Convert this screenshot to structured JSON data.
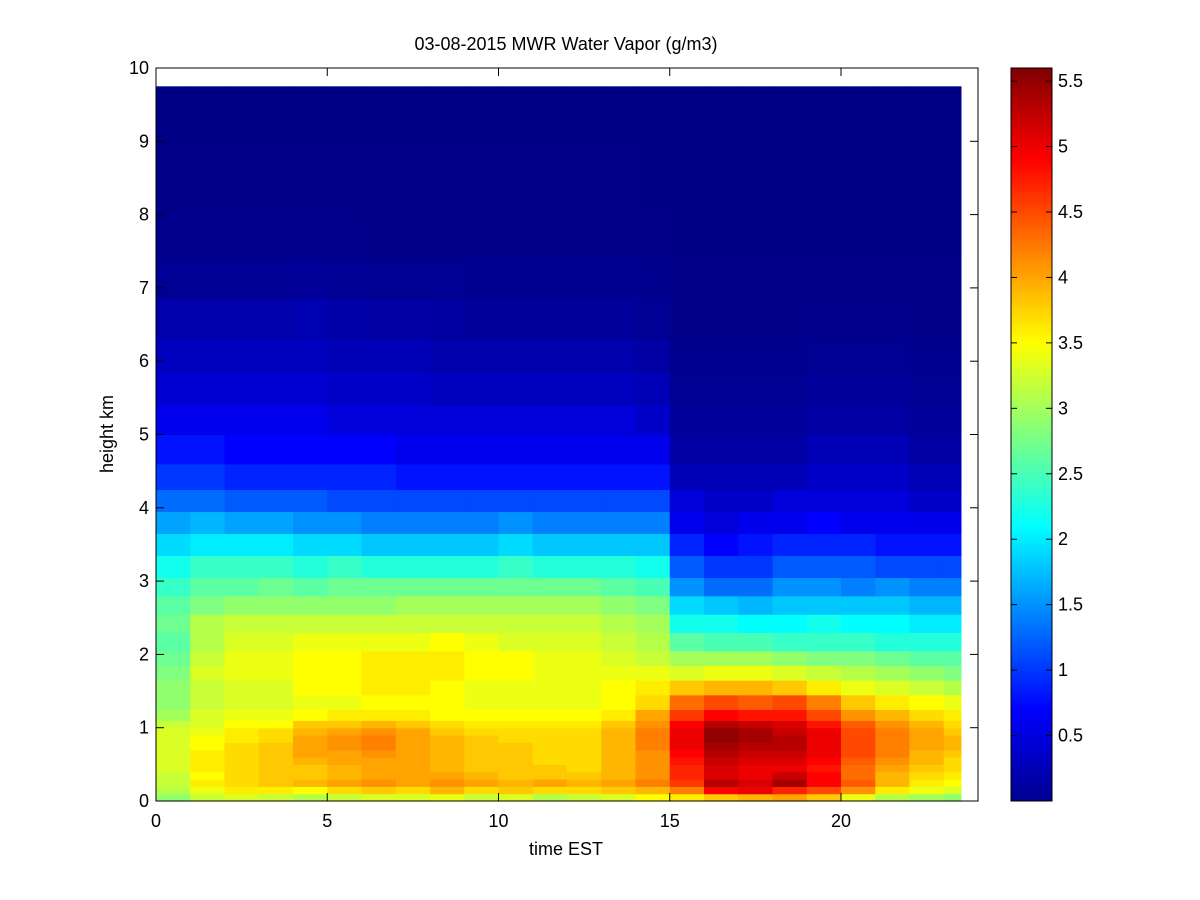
{
  "chart_data": {
    "type": "heatmap",
    "title": "03-08-2015 MWR Water Vapor (g/m3)",
    "xlabel": "time EST",
    "ylabel": "height km",
    "xlim": [
      0,
      24
    ],
    "ylim": [
      0,
      10
    ],
    "xticks": [
      0,
      5,
      10,
      15,
      20
    ],
    "yticks": [
      0,
      1,
      2,
      3,
      4,
      5,
      6,
      7,
      8,
      9,
      10
    ],
    "colormap": "jet",
    "clim": [
      0,
      5.6
    ],
    "colorbar_ticks": [
      0.5,
      1,
      1.5,
      2,
      2.5,
      3,
      3.5,
      4,
      4.5,
      5,
      5.5
    ],
    "x": [
      0,
      1,
      2,
      3,
      4,
      5,
      6,
      7,
      8,
      9,
      10,
      11,
      12,
      13,
      14,
      15,
      16,
      17,
      18,
      19,
      20,
      21,
      22,
      23,
      23.5
    ],
    "y": [
      0,
      0.1,
      0.2,
      0.3,
      0.4,
      0.5,
      0.6,
      0.7,
      0.8,
      0.9,
      1.0,
      1.1,
      1.25,
      1.45,
      1.65,
      1.85,
      2.05,
      2.3,
      2.55,
      2.8,
      3.05,
      3.35,
      3.65,
      3.95,
      4.25,
      4.6,
      5.0,
      5.4,
      5.85,
      6.3,
      6.85,
      7.4,
      8.0,
      8.9,
      9.75
    ],
    "z": [
      [
        2.9,
        3.2,
        3.3,
        3.2,
        3.1,
        3.2,
        3.3,
        3.3,
        3.4,
        3.2,
        3.3,
        3.1,
        3.2,
        3.3,
        3.5,
        3.6,
        3.8,
        3.9,
        4.0,
        3.8,
        3.4,
        3.1,
        3.0,
        2.9,
        2.8
      ],
      [
        3.1,
        3.4,
        3.6,
        3.6,
        3.5,
        3.7,
        3.8,
        3.7,
        3.9,
        3.7,
        3.8,
        3.7,
        3.7,
        3.8,
        3.9,
        4.2,
        4.9,
        5.0,
        4.7,
        4.5,
        4.1,
        3.6,
        3.4,
        3.3,
        3.2
      ],
      [
        3.2,
        3.6,
        3.7,
        3.8,
        3.9,
        4.0,
        4.1,
        4.0,
        4.1,
        4.0,
        3.9,
        4.0,
        3.9,
        4.0,
        4.2,
        4.6,
        5.3,
        5.1,
        5.4,
        4.9,
        4.4,
        3.9,
        3.6,
        3.5,
        3.5
      ],
      [
        3.2,
        3.5,
        3.7,
        3.8,
        3.8,
        3.9,
        4.0,
        4.0,
        4.0,
        3.9,
        3.8,
        3.8,
        3.8,
        3.9,
        4.1,
        4.7,
        5.1,
        5.0,
        5.2,
        4.9,
        4.3,
        3.9,
        3.7,
        3.6,
        3.6
      ],
      [
        3.3,
        3.6,
        3.7,
        3.8,
        3.8,
        3.9,
        4.0,
        4.0,
        3.9,
        3.8,
        3.8,
        3.8,
        3.7,
        3.9,
        4.1,
        4.7,
        5.1,
        5.0,
        5.0,
        4.8,
        4.3,
        4.0,
        3.8,
        3.7,
        3.7
      ],
      [
        3.3,
        3.6,
        3.7,
        3.8,
        3.9,
        4.0,
        4.0,
        4.0,
        3.9,
        3.8,
        3.8,
        3.7,
        3.7,
        3.9,
        4.1,
        4.8,
        5.2,
        5.1,
        5.1,
        4.9,
        4.4,
        4.1,
        3.9,
        3.7,
        3.8
      ],
      [
        3.3,
        3.6,
        3.7,
        3.8,
        4.0,
        4.0,
        4.1,
        4.0,
        3.9,
        3.8,
        3.8,
        3.7,
        3.7,
        3.9,
        4.1,
        4.9,
        5.3,
        5.2,
        5.2,
        5.0,
        4.5,
        4.2,
        3.9,
        3.8,
        3.9
      ],
      [
        3.3,
        3.5,
        3.7,
        3.8,
        4.0,
        4.1,
        4.2,
        4.0,
        3.9,
        3.8,
        3.8,
        3.7,
        3.7,
        3.9,
        4.2,
        5.0,
        5.4,
        5.3,
        5.3,
        5.0,
        4.5,
        4.2,
        4.0,
        3.9,
        3.9
      ],
      [
        3.3,
        3.5,
        3.6,
        3.7,
        4.0,
        4.1,
        4.2,
        4.0,
        3.9,
        3.8,
        3.7,
        3.7,
        3.7,
        3.9,
        4.2,
        5.0,
        5.5,
        5.4,
        5.3,
        5.0,
        4.5,
        4.2,
        4.0,
        3.9,
        3.9
      ],
      [
        3.3,
        3.4,
        3.6,
        3.7,
        3.9,
        4.0,
        4.1,
        4.0,
        3.8,
        3.7,
        3.7,
        3.7,
        3.7,
        3.9,
        4.2,
        5.0,
        5.5,
        5.4,
        5.2,
        5.0,
        4.5,
        4.2,
        4.0,
        3.8,
        3.9
      ],
      [
        3.2,
        3.3,
        3.5,
        3.5,
        3.8,
        3.8,
        3.9,
        3.8,
        3.7,
        3.6,
        3.6,
        3.6,
        3.6,
        3.8,
        4.1,
        4.9,
        5.3,
        5.2,
        5.1,
        4.8,
        4.4,
        4.1,
        3.9,
        3.7,
        3.8
      ],
      [
        3.0,
        3.3,
        3.4,
        3.4,
        3.5,
        3.6,
        3.6,
        3.6,
        3.5,
        3.5,
        3.5,
        3.5,
        3.5,
        3.6,
        4.0,
        4.6,
        4.9,
        4.8,
        4.8,
        4.5,
        4.1,
        3.9,
        3.7,
        3.6,
        3.6
      ],
      [
        2.9,
        3.2,
        3.3,
        3.3,
        3.4,
        3.4,
        3.5,
        3.5,
        3.5,
        3.4,
        3.4,
        3.4,
        3.4,
        3.5,
        3.7,
        4.3,
        4.5,
        4.4,
        4.5,
        4.2,
        3.8,
        3.6,
        3.5,
        3.4,
        3.3
      ],
      [
        2.9,
        3.2,
        3.3,
        3.3,
        3.5,
        3.5,
        3.6,
        3.6,
        3.5,
        3.4,
        3.4,
        3.4,
        3.4,
        3.5,
        3.6,
        3.8,
        3.9,
        3.9,
        3.8,
        3.6,
        3.4,
        3.3,
        3.2,
        3.1,
        3.1
      ],
      [
        2.8,
        3.3,
        3.4,
        3.4,
        3.5,
        3.5,
        3.6,
        3.6,
        3.6,
        3.5,
        3.5,
        3.4,
        3.4,
        3.4,
        3.4,
        3.3,
        3.4,
        3.4,
        3.3,
        3.2,
        3.1,
        3.0,
        2.9,
        2.8,
        2.8
      ],
      [
        2.7,
        3.2,
        3.4,
        3.4,
        3.5,
        3.5,
        3.6,
        3.6,
        3.6,
        3.5,
        3.5,
        3.4,
        3.4,
        3.3,
        3.2,
        3.0,
        3.0,
        3.0,
        2.9,
        2.8,
        2.8,
        2.7,
        2.6,
        2.6,
        2.6
      ],
      [
        2.6,
        3.1,
        3.3,
        3.3,
        3.4,
        3.4,
        3.4,
        3.4,
        3.5,
        3.4,
        3.3,
        3.3,
        3.3,
        3.2,
        3.1,
        2.6,
        2.5,
        2.5,
        2.4,
        2.4,
        2.4,
        2.3,
        2.3,
        2.3,
        2.3
      ],
      [
        2.7,
        3.1,
        3.2,
        3.2,
        3.2,
        3.2,
        3.2,
        3.2,
        3.2,
        3.2,
        3.2,
        3.2,
        3.2,
        3.1,
        3.0,
        2.2,
        2.2,
        2.1,
        2.1,
        2.2,
        2.1,
        2.1,
        2.0,
        2.0,
        2.1
      ],
      [
        2.6,
        2.8,
        2.9,
        2.9,
        2.9,
        2.9,
        2.9,
        3.0,
        3.0,
        3.0,
        3.0,
        3.0,
        3.0,
        2.9,
        2.8,
        1.9,
        1.8,
        1.7,
        1.8,
        1.8,
        1.8,
        1.8,
        1.7,
        1.7,
        1.8
      ],
      [
        2.4,
        2.6,
        2.6,
        2.7,
        2.6,
        2.7,
        2.7,
        2.7,
        2.7,
        2.7,
        2.7,
        2.7,
        2.7,
        2.6,
        2.5,
        1.5,
        1.3,
        1.3,
        1.5,
        1.5,
        1.4,
        1.5,
        1.4,
        1.4,
        1.5
      ],
      [
        2.2,
        2.4,
        2.4,
        2.4,
        2.3,
        2.4,
        2.3,
        2.3,
        2.3,
        2.3,
        2.4,
        2.3,
        2.3,
        2.3,
        2.2,
        1.2,
        1.0,
        1.0,
        1.2,
        1.2,
        1.2,
        1.1,
        1.1,
        1.1,
        1.2
      ],
      [
        1.9,
        2.0,
        2.0,
        2.0,
        1.9,
        1.9,
        1.8,
        1.8,
        1.8,
        1.8,
        1.9,
        1.8,
        1.8,
        1.8,
        1.8,
        0.9,
        0.7,
        0.8,
        0.9,
        0.9,
        0.9,
        0.8,
        0.8,
        0.8,
        0.9
      ],
      [
        1.6,
        1.7,
        1.6,
        1.6,
        1.5,
        1.5,
        1.4,
        1.4,
        1.4,
        1.4,
        1.5,
        1.4,
        1.4,
        1.4,
        1.4,
        0.6,
        0.5,
        0.6,
        0.6,
        0.7,
        0.6,
        0.6,
        0.6,
        0.6,
        0.7
      ],
      [
        1.3,
        1.3,
        1.2,
        1.2,
        1.2,
        1.1,
        1.1,
        1.1,
        1.1,
        1.1,
        1.1,
        1.1,
        1.1,
        1.1,
        1.1,
        0.5,
        0.4,
        0.4,
        0.5,
        0.5,
        0.5,
        0.5,
        0.4,
        0.4,
        0.5
      ],
      [
        1.0,
        1.0,
        0.9,
        0.9,
        0.9,
        0.9,
        0.9,
        0.8,
        0.8,
        0.8,
        0.8,
        0.8,
        0.8,
        0.8,
        0.8,
        0.3,
        0.3,
        0.3,
        0.3,
        0.4,
        0.4,
        0.4,
        0.3,
        0.3,
        0.3
      ],
      [
        0.8,
        0.8,
        0.7,
        0.7,
        0.7,
        0.7,
        0.7,
        0.6,
        0.6,
        0.6,
        0.6,
        0.6,
        0.6,
        0.6,
        0.6,
        0.2,
        0.2,
        0.2,
        0.2,
        0.3,
        0.3,
        0.3,
        0.2,
        0.2,
        0.2
      ],
      [
        0.6,
        0.6,
        0.6,
        0.6,
        0.6,
        0.5,
        0.5,
        0.5,
        0.5,
        0.5,
        0.5,
        0.5,
        0.5,
        0.5,
        0.4,
        0.15,
        0.15,
        0.15,
        0.15,
        0.2,
        0.2,
        0.2,
        0.15,
        0.15,
        0.15
      ],
      [
        0.45,
        0.45,
        0.45,
        0.45,
        0.45,
        0.4,
        0.4,
        0.4,
        0.35,
        0.35,
        0.35,
        0.35,
        0.35,
        0.35,
        0.3,
        0.1,
        0.1,
        0.1,
        0.1,
        0.15,
        0.15,
        0.15,
        0.1,
        0.1,
        0.1
      ],
      [
        0.35,
        0.35,
        0.35,
        0.35,
        0.35,
        0.3,
        0.3,
        0.3,
        0.25,
        0.25,
        0.25,
        0.25,
        0.25,
        0.25,
        0.2,
        0.08,
        0.08,
        0.08,
        0.08,
        0.1,
        0.1,
        0.1,
        0.08,
        0.08,
        0.08
      ],
      [
        0.25,
        0.25,
        0.25,
        0.25,
        0.28,
        0.22,
        0.2,
        0.2,
        0.18,
        0.15,
        0.15,
        0.15,
        0.15,
        0.15,
        0.12,
        0.06,
        0.06,
        0.06,
        0.06,
        0.07,
        0.07,
        0.07,
        0.06,
        0.06,
        0.06
      ],
      [
        0.12,
        0.12,
        0.12,
        0.12,
        0.14,
        0.12,
        0.1,
        0.1,
        0.1,
        0.09,
        0.09,
        0.09,
        0.09,
        0.09,
        0.08,
        0.05,
        0.05,
        0.05,
        0.05,
        0.05,
        0.05,
        0.05,
        0.05,
        0.05,
        0.05
      ],
      [
        0.07,
        0.07,
        0.07,
        0.07,
        0.07,
        0.07,
        0.06,
        0.06,
        0.06,
        0.06,
        0.06,
        0.06,
        0.06,
        0.06,
        0.05,
        0.04,
        0.04,
        0.04,
        0.04,
        0.04,
        0.04,
        0.04,
        0.04,
        0.04,
        0.04
      ],
      [
        0.05,
        0.05,
        0.05,
        0.05,
        0.05,
        0.05,
        0.05,
        0.05,
        0.05,
        0.05,
        0.05,
        0.05,
        0.05,
        0.05,
        0.04,
        0.04,
        0.04,
        0.04,
        0.04,
        0.04,
        0.04,
        0.04,
        0.04,
        0.04,
        0.04
      ],
      [
        0.04,
        0.04,
        0.04,
        0.04,
        0.04,
        0.04,
        0.04,
        0.04,
        0.04,
        0.04,
        0.04,
        0.04,
        0.04,
        0.04,
        0.04,
        0.04,
        0.04,
        0.04,
        0.04,
        0.04,
        0.04,
        0.04,
        0.04,
        0.04,
        0.04
      ],
      [
        0.04,
        0.04,
        0.04,
        0.04,
        0.04,
        0.04,
        0.04,
        0.04,
        0.04,
        0.04,
        0.04,
        0.04,
        0.04,
        0.04,
        0.04,
        0.04,
        0.04,
        0.04,
        0.04,
        0.04,
        0.04,
        0.04,
        0.04,
        0.04,
        0.04
      ]
    ]
  }
}
